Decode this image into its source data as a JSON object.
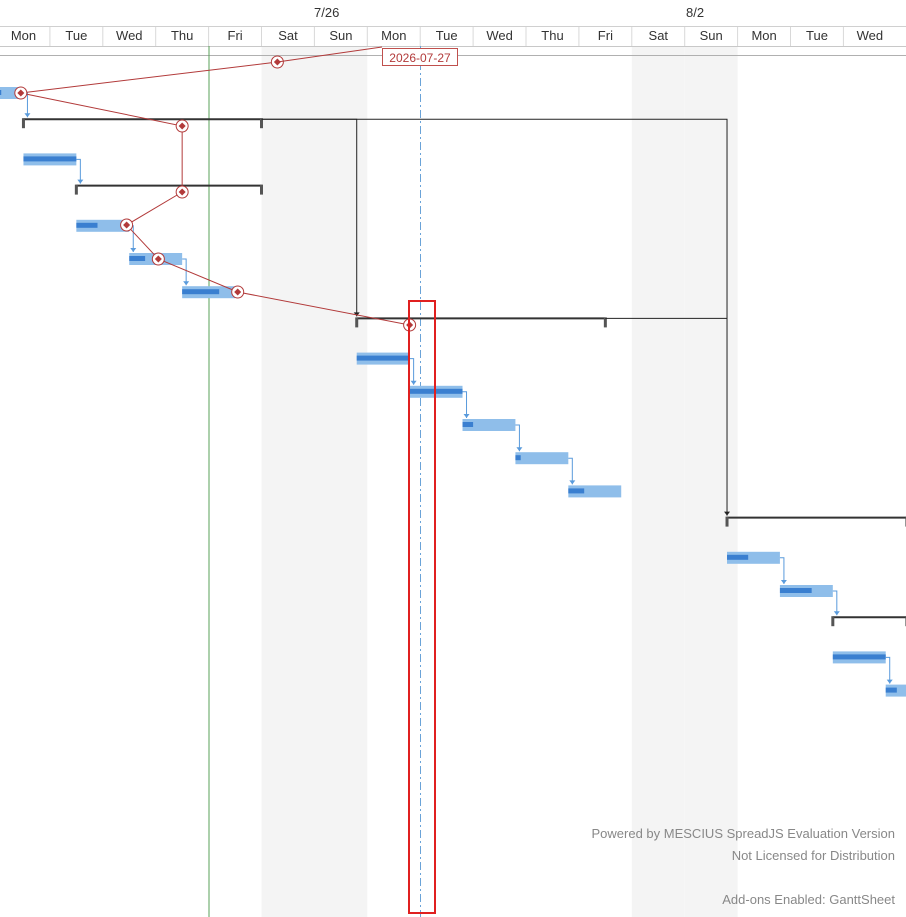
{
  "timescale": {
    "weeks": [
      "7/26",
      "8/2"
    ],
    "days": [
      "Mon",
      "Tue",
      "Wed",
      "Thu",
      "Fri",
      "Sat",
      "Sun",
      "Mon",
      "Tue",
      "Wed",
      "Thu",
      "Fri",
      "Sat",
      "Sun",
      "Mon",
      "Tue",
      "Wed"
    ]
  },
  "status_date_label": "2026-07-27",
  "watermark": {
    "line1": "Powered by MESCIUS SpreadJS Evaluation Version",
    "line2": "Not Licensed for Distribution",
    "line3": "Add-ons Enabled: GanttSheet"
  },
  "colors": {
    "bar_light": "#8fbeea",
    "bar_progress": "#3a7fd0",
    "summary": "#333333",
    "progress_line": "#b23a3a",
    "today_line": "#5aa05a",
    "status_line": "#6aa3d8",
    "weekend_shade": "#f4f4f4",
    "highlight": "#e02020"
  },
  "chart_data": {
    "type": "gantt",
    "tasks": [
      {
        "kind": "task",
        "start": -0.2,
        "finish": 0.5,
        "progress": 0.4
      },
      {
        "kind": "summary",
        "start": 0.5,
        "finish": 5.0
      },
      {
        "kind": "task",
        "start": 0.5,
        "finish": 1.5,
        "progress": 1.0
      },
      {
        "kind": "summary",
        "start": 1.5,
        "finish": 5.0
      },
      {
        "kind": "task",
        "start": 1.5,
        "finish": 2.5,
        "progress": 0.4
      },
      {
        "kind": "task",
        "start": 2.5,
        "finish": 3.5,
        "progress": 0.3
      },
      {
        "kind": "task",
        "start": 3.5,
        "finish": 4.5,
        "progress": 0.7
      },
      {
        "kind": "summary",
        "start": 6.8,
        "finish": 11.5
      },
      {
        "kind": "task",
        "start": 6.8,
        "finish": 7.8,
        "progress": 1.0
      },
      {
        "kind": "task",
        "start": 7.8,
        "finish": 8.8,
        "progress": 1.0
      },
      {
        "kind": "task",
        "start": 8.8,
        "finish": 9.8,
        "progress": 0.2
      },
      {
        "kind": "task",
        "start": 9.8,
        "finish": 10.8,
        "progress": 0.1
      },
      {
        "kind": "task",
        "start": 10.8,
        "finish": 11.8,
        "progress": 0.3
      },
      {
        "kind": "summary",
        "start": 13.8,
        "finish": 17.2
      },
      {
        "kind": "task",
        "start": 13.8,
        "finish": 14.8,
        "progress": 0.4
      },
      {
        "kind": "task",
        "start": 14.8,
        "finish": 15.8,
        "progress": 0.6
      },
      {
        "kind": "summary",
        "start": 15.8,
        "finish": 17.2
      },
      {
        "kind": "task",
        "start": 15.8,
        "finish": 16.8,
        "progress": 1.0
      },
      {
        "kind": "task",
        "start": 16.8,
        "finish": 17.5,
        "progress": 0.3
      }
    ],
    "progress_points": [
      5.3,
      0.45,
      3.5,
      3.5,
      2.45,
      3.05,
      4.55,
      7.8
    ]
  }
}
